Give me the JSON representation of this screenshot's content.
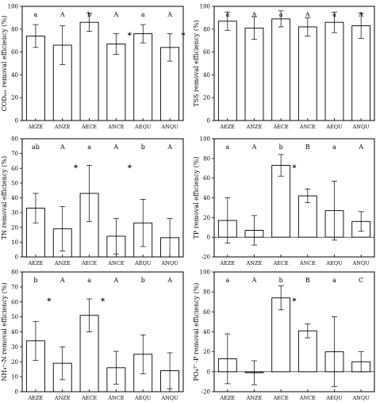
{
  "chart_data": [
    {
      "type": "bar",
      "ylabel": "CODₘₙ removal efficiency (%)",
      "ylim": [
        0,
        100
      ],
      "yticks": [
        0,
        20,
        40,
        60,
        80,
        100
      ],
      "categories": [
        "AEZE",
        "ANZE",
        "AECE",
        "ANCE",
        "AEQU",
        "ANQU"
      ],
      "values": [
        74,
        66,
        86,
        67,
        76,
        64
      ],
      "errors": [
        10,
        17,
        8,
        9,
        8,
        12
      ],
      "letters": [
        "a",
        "A",
        "b",
        "A",
        "a",
        "A"
      ],
      "stars": [
        "",
        "",
        "",
        "*",
        "",
        "*"
      ]
    },
    {
      "type": "bar",
      "ylabel": "TSS removal efficiency (%)",
      "ylim": [
        0,
        100
      ],
      "yticks": [
        0,
        20,
        40,
        60,
        80,
        100
      ],
      "categories": [
        "AEZE",
        "ANZE",
        "AECE",
        "ANCE",
        "AEQU",
        "ANQU"
      ],
      "values": [
        87,
        81,
        89,
        82,
        86,
        83
      ],
      "errors": [
        8,
        10,
        7,
        8,
        9,
        11
      ],
      "letters": [
        "a",
        "A",
        "a",
        "A",
        "a",
        "A"
      ],
      "stars": [
        "",
        "",
        "",
        "",
        "",
        ""
      ]
    },
    {
      "type": "bar",
      "ylabel": "TN removal efficiency (%)",
      "ylim": [
        0,
        80
      ],
      "yticks": [
        0,
        10,
        20,
        30,
        40,
        50,
        60,
        70,
        80
      ],
      "categories": [
        "AEZE",
        "ANZE",
        "AECE",
        "ANCE",
        "AEQU",
        "ANQU"
      ],
      "values": [
        33,
        19,
        43,
        14,
        23,
        13
      ],
      "errors": [
        10,
        15,
        19,
        12,
        16,
        13
      ],
      "letters": [
        "ab",
        "A",
        "a",
        "A",
        "b",
        "A"
      ],
      "stars": [
        "",
        "*",
        "",
        "*",
        "",
        ""
      ]
    },
    {
      "type": "bar",
      "ylabel": "TP removal efficiency (%)",
      "ylim": [
        -20,
        100
      ],
      "yticks": [
        -20,
        0,
        20,
        40,
        60,
        80,
        100
      ],
      "categories": [
        "AEZE",
        "ANZE",
        "AECE",
        "ANCE",
        "AEQU",
        "ANQU"
      ],
      "values": [
        17,
        7,
        73,
        42,
        27,
        16
      ],
      "errors": [
        23,
        15,
        11,
        7,
        30,
        10
      ],
      "letters": [
        "a",
        "A",
        "b",
        "B",
        "a",
        "A"
      ],
      "stars": [
        "",
        "",
        "*",
        "",
        "",
        ""
      ]
    },
    {
      "type": "bar",
      "ylabel": "NH₄⁺-N removal efficiency (%)",
      "ylim": [
        0,
        80
      ],
      "yticks": [
        0,
        10,
        20,
        30,
        40,
        50,
        60,
        70,
        80
      ],
      "categories": [
        "AEZE",
        "ANZE",
        "AECE",
        "ANCE",
        "AEQU",
        "ANQU"
      ],
      "values": [
        34,
        19,
        51,
        16,
        25,
        14
      ],
      "errors": [
        13,
        11,
        11,
        11,
        13,
        12
      ],
      "letters": [
        "b",
        "A",
        "a",
        "A",
        "b",
        "A"
      ],
      "stars": [
        "*",
        "",
        "*",
        "",
        "",
        ""
      ]
    },
    {
      "type": "bar",
      "ylabel": "PO₄³⁻-P removal efficiency (%)",
      "ylim": [
        -20,
        100
      ],
      "yticks": [
        -20,
        0,
        20,
        40,
        60,
        80,
        100
      ],
      "categories": [
        "AEZE",
        "ANZE",
        "AECE",
        "ANCE",
        "AEQU",
        "ANQU"
      ],
      "values": [
        13,
        -1,
        74,
        41,
        20,
        10
      ],
      "errors": [
        25,
        12,
        12,
        7,
        35,
        10
      ],
      "letters": [
        "a",
        "A",
        "b",
        "B",
        "a",
        "C"
      ],
      "stars": [
        "",
        "",
        "*",
        "",
        "",
        ""
      ]
    }
  ]
}
